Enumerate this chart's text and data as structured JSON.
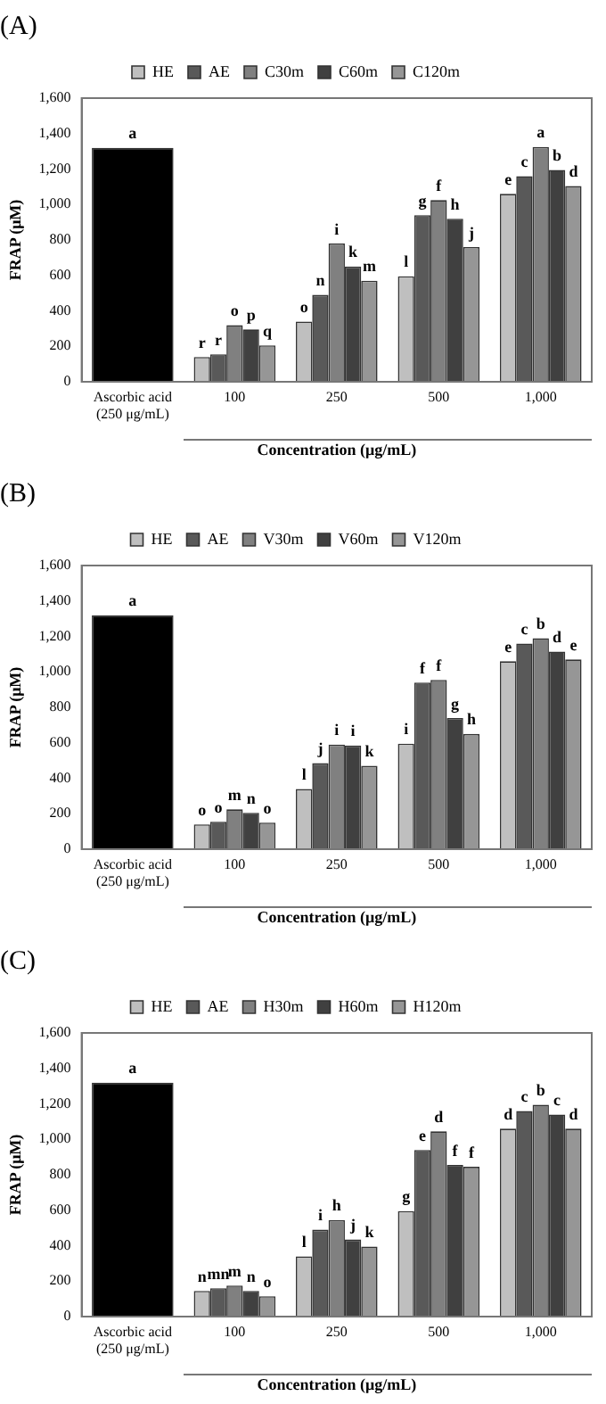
{
  "chart_data": [
    {
      "type": "bar",
      "title": "(A)",
      "xlabel": "Concentration (μg/mL)",
      "ylabel": "FRAP (μM)",
      "categories": [
        "Ascorbic acid\n(250 μg/mL)",
        "100",
        "250",
        "500",
        "1,000"
      ],
      "series": [
        {
          "color": "#000000",
          "values": [
            1320,
            null,
            null,
            null,
            null
          ],
          "value_labels": [
            "a",
            null,
            null,
            null,
            null
          ]
        },
        {
          "name": "HE",
          "color": "#bfbfbf",
          "values": [
            null,
            140,
            340,
            595,
            1060
          ],
          "value_labels": [
            null,
            "r",
            "o",
            "l",
            "e"
          ]
        },
        {
          "name": "AE",
          "color": "#595959",
          "values": [
            null,
            155,
            490,
            940,
            1160
          ],
          "value_labels": [
            null,
            "r",
            "n",
            "g",
            "c"
          ]
        },
        {
          "name": "C30m",
          "color": "#808080",
          "values": [
            null,
            320,
            780,
            1025,
            1325
          ],
          "value_labels": [
            null,
            "o",
            "i",
            "f",
            "a"
          ]
        },
        {
          "name": "C60m",
          "color": "#404040",
          "values": [
            null,
            295,
            650,
            920,
            1195
          ],
          "value_labels": [
            null,
            "p",
            "k",
            "h",
            "b"
          ]
        },
        {
          "name": "C120m",
          "color": "#969696",
          "values": [
            null,
            205,
            570,
            760,
            1105
          ],
          "value_labels": [
            null,
            "q",
            "m",
            "j",
            "d"
          ]
        }
      ],
      "ylim": [
        0,
        1600
      ],
      "yticks": [
        0,
        200,
        400,
        600,
        800,
        {
          "value": 1000,
          "label": "1,000"
        },
        {
          "value": 1200,
          "label": "1,200"
        },
        {
          "value": 1400,
          "label": "1,400"
        },
        {
          "value": 1600,
          "label": "1,600"
        }
      ],
      "legend": "top",
      "grid": false
    },
    {
      "type": "bar",
      "title": "(B)",
      "xlabel": "Concentration (μg/mL)",
      "ylabel": "FRAP (μM)",
      "categories": [
        "Ascorbic acid\n(250 μg/mL)",
        "100",
        "250",
        "500",
        "1,000"
      ],
      "series": [
        {
          "color": "#000000",
          "values": [
            1320,
            null,
            null,
            null,
            null
          ],
          "value_labels": [
            "a",
            null,
            null,
            null,
            null
          ]
        },
        {
          "name": "HE",
          "color": "#bfbfbf",
          "values": [
            null,
            140,
            340,
            595,
            1060
          ],
          "value_labels": [
            null,
            "o",
            "l",
            "i",
            "e"
          ]
        },
        {
          "name": "AE",
          "color": "#595959",
          "values": [
            null,
            155,
            485,
            940,
            1160
          ],
          "value_labels": [
            null,
            "o",
            "j",
            "f",
            "c"
          ]
        },
        {
          "name": "V30m",
          "color": "#808080",
          "values": [
            null,
            225,
            590,
            955,
            1190
          ],
          "value_labels": [
            null,
            "m",
            "i",
            "f",
            "b"
          ]
        },
        {
          "name": "V60m",
          "color": "#404040",
          "values": [
            null,
            205,
            585,
            740,
            1115
          ],
          "value_labels": [
            null,
            "n",
            "i",
            "g",
            "d"
          ]
        },
        {
          "name": "V120m",
          "color": "#969696",
          "values": [
            null,
            150,
            470,
            650,
            1070
          ],
          "value_labels": [
            null,
            "o",
            "k",
            "h",
            "e"
          ]
        }
      ],
      "ylim": [
        0,
        1600
      ],
      "yticks": [
        0,
        200,
        400,
        600,
        800,
        {
          "value": 1000,
          "label": "1,000"
        },
        {
          "value": 1200,
          "label": "1,200"
        },
        {
          "value": 1400,
          "label": "1,400"
        },
        {
          "value": 1600,
          "label": "1,600"
        }
      ],
      "legend": "top",
      "grid": false
    },
    {
      "type": "bar",
      "title": "(C)",
      "xlabel": "Concentration (μg/mL)",
      "ylabel": "FRAP (μM)",
      "categories": [
        "Ascorbic acid\n(250 μg/mL)",
        "100",
        "250",
        "500",
        "1,000"
      ],
      "series": [
        {
          "color": "#000000",
          "values": [
            1320,
            null,
            null,
            null,
            null
          ],
          "value_labels": [
            "a",
            null,
            null,
            null,
            null
          ]
        },
        {
          "name": "HE",
          "color": "#bfbfbf",
          "values": [
            null,
            145,
            340,
            595,
            1060
          ],
          "value_labels": [
            null,
            "n",
            "l",
            "g",
            "d"
          ]
        },
        {
          "name": "AE",
          "color": "#595959",
          "values": [
            null,
            160,
            490,
            940,
            1160
          ],
          "value_labels": [
            null,
            "mn",
            "i",
            "e",
            "c"
          ]
        },
        {
          "name": "H30m",
          "color": "#808080",
          "values": [
            null,
            175,
            545,
            1045,
            1195
          ],
          "value_labels": [
            null,
            "m",
            "h",
            "d",
            "b"
          ]
        },
        {
          "name": "H60m",
          "color": "#404040",
          "values": [
            null,
            145,
            435,
            855,
            1140
          ],
          "value_labels": [
            null,
            "n",
            "j",
            "f",
            "c"
          ]
        },
        {
          "name": "H120m",
          "color": "#969696",
          "values": [
            null,
            115,
            395,
            845,
            1060
          ],
          "value_labels": [
            null,
            "o",
            "k",
            "f",
            "d"
          ]
        }
      ],
      "ylim": [
        0,
        1600
      ],
      "yticks": [
        0,
        200,
        400,
        600,
        800,
        {
          "value": 1000,
          "label": "1,000"
        },
        {
          "value": 1200,
          "label": "1,200"
        },
        {
          "value": 1400,
          "label": "1,400"
        },
        {
          "value": 1600,
          "label": "1,600"
        }
      ],
      "legend": "top",
      "grid": false
    }
  ]
}
